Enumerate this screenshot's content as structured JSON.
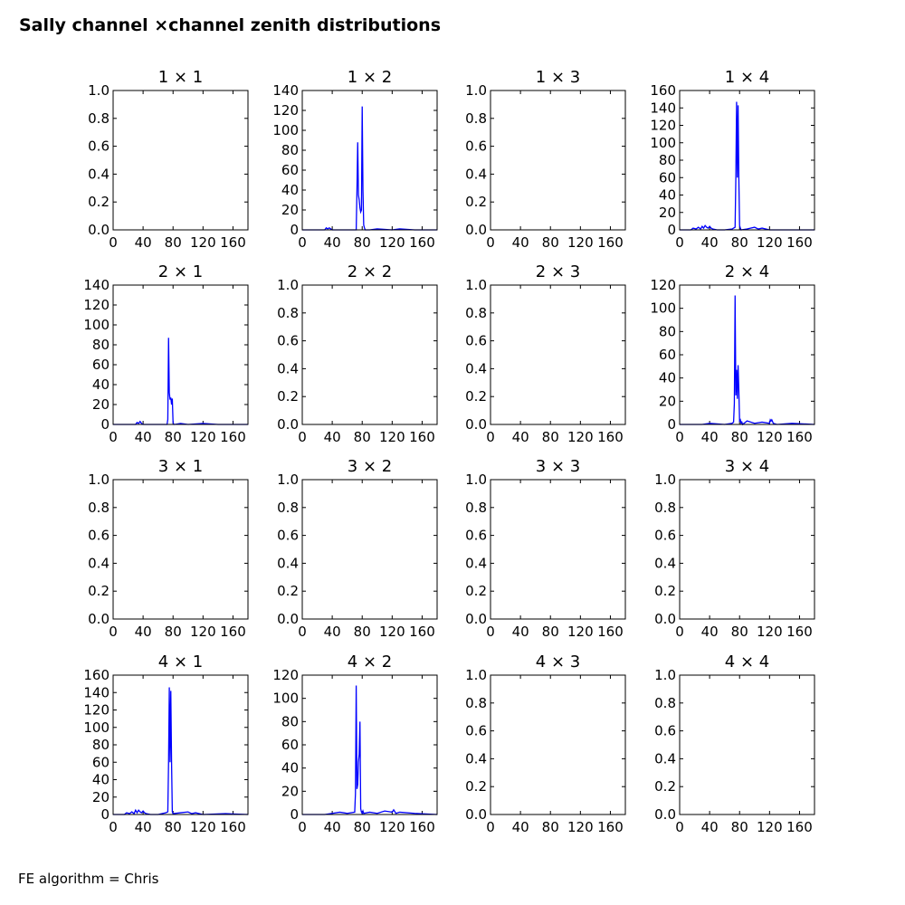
{
  "figure": {
    "title": "Sally channel ×channel zenith distributions",
    "footer": "FE algorithm = Chris",
    "line_color": "#0000ff"
  },
  "chart_data": [
    {
      "type": "line",
      "title": "1 × 1",
      "xlim": [
        0,
        180
      ],
      "ylim": [
        0,
        1.0
      ],
      "xticks": [
        "0",
        "40",
        "80",
        "120",
        "160"
      ],
      "yticks": [
        "0.0",
        "0.2",
        "0.4",
        "0.6",
        "0.8",
        "1.0"
      ],
      "series": []
    },
    {
      "type": "line",
      "title": "1 × 2",
      "xlim": [
        0,
        180
      ],
      "ylim": [
        0,
        140
      ],
      "xticks": [
        "0",
        "40",
        "80",
        "120",
        "160"
      ],
      "yticks": [
        "0",
        "20",
        "40",
        "60",
        "80",
        "100",
        "120",
        "140"
      ],
      "series": [
        {
          "x": [
            0,
            30,
            32,
            34,
            36,
            38,
            40,
            60,
            72,
            73,
            74,
            75,
            76,
            77,
            78,
            79,
            80,
            81,
            82,
            83,
            84,
            90,
            100,
            120,
            130,
            150,
            180
          ],
          "y": [
            0,
            0,
            2,
            1,
            2,
            1,
            0,
            0,
            0,
            40,
            88,
            35,
            30,
            22,
            18,
            20,
            124,
            40,
            5,
            2,
            0,
            0,
            1,
            0,
            1,
            0,
            0
          ]
        }
      ]
    },
    {
      "type": "line",
      "title": "1 × 3",
      "xlim": [
        0,
        180
      ],
      "ylim": [
        0,
        1.0
      ],
      "xticks": [
        "0",
        "40",
        "80",
        "120",
        "160"
      ],
      "yticks": [
        "0.0",
        "0.2",
        "0.4",
        "0.6",
        "0.8",
        "1.0"
      ],
      "series": []
    },
    {
      "type": "line",
      "title": "1 × 4",
      "xlim": [
        0,
        180
      ],
      "ylim": [
        0,
        160
      ],
      "xticks": [
        "0",
        "40",
        "80",
        "120",
        "160"
      ],
      "yticks": [
        "0",
        "20",
        "40",
        "60",
        "80",
        "100",
        "120",
        "140",
        "160"
      ],
      "series": [
        {
          "x": [
            0,
            15,
            18,
            22,
            25,
            28,
            30,
            32,
            34,
            36,
            38,
            40,
            42,
            44,
            50,
            60,
            70,
            74,
            75,
            76,
            77,
            78,
            79,
            80,
            81,
            82,
            90,
            100,
            105,
            110,
            120,
            150,
            180
          ],
          "y": [
            0,
            0,
            2,
            1,
            3,
            1,
            4,
            2,
            5,
            3,
            2,
            4,
            2,
            1,
            0,
            0,
            1,
            3,
            60,
            147,
            60,
            143,
            60,
            5,
            2,
            0,
            1,
            3,
            1,
            2,
            0,
            0,
            0
          ]
        }
      ]
    },
    {
      "type": "line",
      "title": "2 × 1",
      "xlim": [
        0,
        180
      ],
      "ylim": [
        0,
        140
      ],
      "xticks": [
        "0",
        "40",
        "80",
        "120",
        "160"
      ],
      "yticks": [
        "0",
        "20",
        "40",
        "60",
        "80",
        "100",
        "120",
        "140"
      ],
      "series": [
        {
          "x": [
            0,
            30,
            32,
            34,
            36,
            38,
            40,
            60,
            72,
            73,
            74,
            75,
            76,
            77,
            78,
            79,
            80,
            81,
            82,
            90,
            100,
            120,
            140,
            180
          ],
          "y": [
            0,
            0,
            2,
            1,
            3,
            1,
            0,
            0,
            0,
            5,
            87,
            32,
            25,
            27,
            20,
            26,
            2,
            0,
            0,
            1,
            0,
            1,
            0,
            0
          ]
        }
      ]
    },
    {
      "type": "line",
      "title": "2 × 2",
      "xlim": [
        0,
        180
      ],
      "ylim": [
        0,
        1.0
      ],
      "xticks": [
        "0",
        "40",
        "80",
        "120",
        "160"
      ],
      "yticks": [
        "0.0",
        "0.2",
        "0.4",
        "0.6",
        "0.8",
        "1.0"
      ],
      "series": []
    },
    {
      "type": "line",
      "title": "2 × 3",
      "xlim": [
        0,
        180
      ],
      "ylim": [
        0,
        1.0
      ],
      "xticks": [
        "0",
        "40",
        "80",
        "120",
        "160"
      ],
      "yticks": [
        "0.0",
        "0.2",
        "0.4",
        "0.6",
        "0.8",
        "1.0"
      ],
      "series": []
    },
    {
      "type": "line",
      "title": "2 × 4",
      "xlim": [
        0,
        180
      ],
      "ylim": [
        0,
        120
      ],
      "xticks": [
        "0",
        "40",
        "80",
        "120",
        "160"
      ],
      "yticks": [
        "0",
        "20",
        "40",
        "60",
        "80",
        "100",
        "120"
      ],
      "series": [
        {
          "x": [
            0,
            30,
            40,
            60,
            70,
            72,
            73,
            74,
            75,
            76,
            77,
            78,
            79,
            80,
            81,
            82,
            83,
            84,
            90,
            100,
            110,
            120,
            121,
            122,
            123,
            125,
            130,
            150,
            180
          ],
          "y": [
            0,
            0,
            1,
            0,
            1,
            2,
            18,
            111,
            25,
            47,
            22,
            51,
            30,
            3,
            4,
            1,
            2,
            0,
            3,
            1,
            2,
            1,
            4,
            3,
            4,
            1,
            0,
            1,
            0
          ]
        }
      ]
    },
    {
      "type": "line",
      "title": "3 × 1",
      "xlim": [
        0,
        180
      ],
      "ylim": [
        0,
        1.0
      ],
      "xticks": [
        "0",
        "40",
        "80",
        "120",
        "160"
      ],
      "yticks": [
        "0.0",
        "0.2",
        "0.4",
        "0.6",
        "0.8",
        "1.0"
      ],
      "series": []
    },
    {
      "type": "line",
      "title": "3 × 2",
      "xlim": [
        0,
        180
      ],
      "ylim": [
        0,
        1.0
      ],
      "xticks": [
        "0",
        "40",
        "80",
        "120",
        "160"
      ],
      "yticks": [
        "0.0",
        "0.2",
        "0.4",
        "0.6",
        "0.8",
        "1.0"
      ],
      "series": []
    },
    {
      "type": "line",
      "title": "3 × 3",
      "xlim": [
        0,
        180
      ],
      "ylim": [
        0,
        1.0
      ],
      "xticks": [
        "0",
        "40",
        "80",
        "120",
        "160"
      ],
      "yticks": [
        "0.0",
        "0.2",
        "0.4",
        "0.6",
        "0.8",
        "1.0"
      ],
      "series": []
    },
    {
      "type": "line",
      "title": "3 × 4",
      "xlim": [
        0,
        180
      ],
      "ylim": [
        0,
        1.0
      ],
      "xticks": [
        "0",
        "40",
        "80",
        "120",
        "160"
      ],
      "yticks": [
        "0.0",
        "0.2",
        "0.4",
        "0.6",
        "0.8",
        "1.0"
      ],
      "series": []
    },
    {
      "type": "line",
      "title": "4 × 1",
      "xlim": [
        0,
        180
      ],
      "ylim": [
        0,
        160
      ],
      "xticks": [
        "0",
        "40",
        "80",
        "120",
        "160"
      ],
      "yticks": [
        "0",
        "20",
        "40",
        "60",
        "80",
        "100",
        "120",
        "140",
        "160"
      ],
      "series": [
        {
          "x": [
            0,
            15,
            18,
            22,
            25,
            28,
            30,
            32,
            34,
            36,
            38,
            40,
            42,
            44,
            50,
            60,
            70,
            73,
            74,
            75,
            76,
            77,
            78,
            79,
            80,
            90,
            100,
            105,
            110,
            120,
            150,
            180
          ],
          "y": [
            0,
            0,
            2,
            1,
            3,
            1,
            5,
            2,
            5,
            3,
            2,
            4,
            2,
            1,
            0,
            0,
            2,
            3,
            60,
            146,
            60,
            142,
            60,
            3,
            1,
            2,
            3,
            1,
            2,
            0,
            1,
            0
          ]
        }
      ]
    },
    {
      "type": "line",
      "title": "4 × 2",
      "xlim": [
        0,
        180
      ],
      "ylim": [
        0,
        120
      ],
      "xticks": [
        "0",
        "40",
        "80",
        "120",
        "160"
      ],
      "yticks": [
        "0",
        "20",
        "40",
        "60",
        "80",
        "100",
        "120"
      ],
      "series": [
        {
          "x": [
            0,
            30,
            40,
            50,
            60,
            70,
            71,
            72,
            73,
            74,
            75,
            76,
            77,
            78,
            79,
            80,
            81,
            82,
            90,
            100,
            110,
            120,
            122,
            123,
            125,
            130,
            150,
            180
          ],
          "y": [
            0,
            0,
            1,
            2,
            1,
            2,
            18,
            111,
            22,
            26,
            45,
            52,
            80,
            5,
            2,
            1,
            3,
            1,
            2,
            1,
            3,
            2,
            4,
            3,
            1,
            2,
            1,
            0
          ]
        }
      ]
    },
    {
      "type": "line",
      "title": "4 × 3",
      "xlim": [
        0,
        180
      ],
      "ylim": [
        0,
        1.0
      ],
      "xticks": [
        "0",
        "40",
        "80",
        "120",
        "160"
      ],
      "yticks": [
        "0.0",
        "0.2",
        "0.4",
        "0.6",
        "0.8",
        "1.0"
      ],
      "series": []
    },
    {
      "type": "line",
      "title": "4 × 4",
      "xlim": [
        0,
        180
      ],
      "ylim": [
        0,
        1.0
      ],
      "xticks": [
        "0",
        "40",
        "80",
        "120",
        "160"
      ],
      "yticks": [
        "0.0",
        "0.2",
        "0.4",
        "0.6",
        "0.8",
        "1.0"
      ],
      "series": []
    }
  ]
}
